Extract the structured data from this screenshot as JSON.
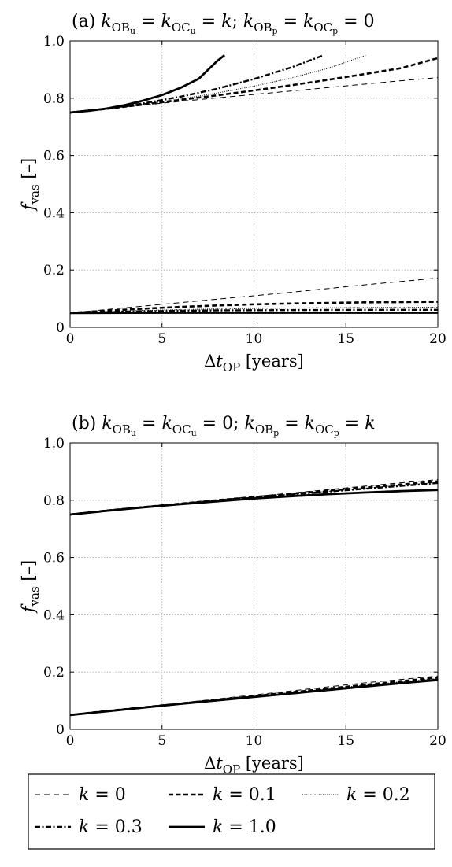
{
  "chart_data": [
    {
      "type": "line",
      "title": {
        "prefix": "(a)",
        "text": "k_OBu = k_OCu = k; k_OBp = k_OCp = 0",
        "tokens": [
          {
            "t": "(a) ",
            "it": false,
            "sub": false
          },
          {
            "t": "k",
            "it": true,
            "sub": false
          },
          {
            "t": "OB",
            "it": false,
            "sub": true
          },
          {
            "t": "u",
            "it": false,
            "sub": true,
            "subsub": true
          },
          {
            "t": " = ",
            "it": false,
            "sub": false
          },
          {
            "t": "k",
            "it": true,
            "sub": false
          },
          {
            "t": "OC",
            "it": false,
            "sub": true
          },
          {
            "t": "u",
            "it": false,
            "sub": true,
            "subsub": true
          },
          {
            "t": " = ",
            "it": false,
            "sub": false
          },
          {
            "t": "k",
            "it": true,
            "sub": false
          },
          {
            "t": "; ",
            "it": false,
            "sub": false
          },
          {
            "t": "k",
            "it": true,
            "sub": false
          },
          {
            "t": "OB",
            "it": false,
            "sub": true
          },
          {
            "t": "p",
            "it": false,
            "sub": true,
            "subsub": true
          },
          {
            "t": " = ",
            "it": false,
            "sub": false
          },
          {
            "t": "k",
            "it": true,
            "sub": false
          },
          {
            "t": "OC",
            "it": false,
            "sub": true
          },
          {
            "t": "p",
            "it": false,
            "sub": true,
            "subsub": true
          },
          {
            "t": " = 0",
            "it": false,
            "sub": false
          }
        ]
      },
      "xlabel": {
        "text": "Δt_OP [years]",
        "main": "Δt",
        "sub": "OP",
        "unit": " [years]"
      },
      "ylabel": {
        "text": "f_vas [–]",
        "main": "f",
        "sub": "vas",
        "unit": " [–]"
      },
      "xlim": [
        0,
        20
      ],
      "ylim": [
        0,
        1.0
      ],
      "xticks": [
        "0",
        "5",
        "10",
        "15",
        "20"
      ],
      "yticks": [
        "0",
        "0.2",
        "0.4",
        "0.6",
        "0.8",
        "1.0"
      ],
      "grid": true,
      "series": [
        {
          "name": "k = 0",
          "style": "dash-thin",
          "x": [
            0,
            2,
            4,
            6,
            8,
            10,
            12,
            14,
            16,
            18,
            20
          ],
          "y": [
            0.75,
            0.764,
            0.776,
            0.789,
            0.801,
            0.813,
            0.825,
            0.837,
            0.849,
            0.861,
            0.872
          ]
        },
        {
          "name": "k = 0.1",
          "style": "dash-thick",
          "x": [
            0,
            2,
            4,
            6,
            8,
            10,
            12,
            14,
            16,
            18,
            20
          ],
          "y": [
            0.75,
            0.763,
            0.778,
            0.794,
            0.81,
            0.827,
            0.845,
            0.864,
            0.884,
            0.905,
            0.94
          ]
        },
        {
          "name": "k = 0.2",
          "style": "dotted",
          "x": [
            0,
            2,
            4,
            6,
            8,
            10,
            12,
            14,
            16.1
          ],
          "y": [
            0.75,
            0.763,
            0.779,
            0.797,
            0.818,
            0.842,
            0.87,
            0.904,
            0.95
          ]
        },
        {
          "name": "k = 0.3",
          "style": "dashdot",
          "x": [
            0,
            2,
            4,
            6,
            8,
            10,
            12,
            13.8
          ],
          "y": [
            0.75,
            0.764,
            0.782,
            0.805,
            0.833,
            0.867,
            0.907,
            0.95
          ]
        },
        {
          "name": "k = 1.0",
          "style": "solid",
          "x": [
            0,
            1,
            2,
            3,
            4,
            5,
            6,
            7,
            8,
            8.4
          ],
          "y": [
            0.75,
            0.756,
            0.764,
            0.776,
            0.792,
            0.811,
            0.836,
            0.868,
            0.93,
            0.95
          ]
        },
        {
          "name": "k = 0",
          "style": "dash-thin",
          "x": [
            0,
            2,
            4,
            6,
            8,
            10,
            12,
            14,
            16,
            18,
            20
          ],
          "y": [
            0.05,
            0.062,
            0.074,
            0.086,
            0.098,
            0.11,
            0.122,
            0.135,
            0.148,
            0.16,
            0.172
          ]
        },
        {
          "name": "k = 0.1",
          "style": "dash-thick",
          "x": [
            0,
            2,
            4,
            6,
            8,
            10,
            12,
            14,
            16,
            18,
            20
          ],
          "y": [
            0.05,
            0.058,
            0.065,
            0.071,
            0.076,
            0.08,
            0.083,
            0.085,
            0.087,
            0.088,
            0.089
          ]
        },
        {
          "name": "k = 0.2",
          "style": "dotted",
          "x": [
            0,
            4,
            8,
            12,
            16,
            20
          ],
          "y": [
            0.05,
            0.059,
            0.064,
            0.067,
            0.069,
            0.07
          ]
        },
        {
          "name": "k = 0.3",
          "style": "dashdot",
          "x": [
            0,
            4,
            8,
            12,
            16,
            20
          ],
          "y": [
            0.05,
            0.056,
            0.059,
            0.06,
            0.061,
            0.061
          ]
        },
        {
          "name": "k = 1.0",
          "style": "solid",
          "x": [
            0,
            5,
            10,
            15,
            20
          ],
          "y": [
            0.05,
            0.051,
            0.051,
            0.051,
            0.051
          ]
        }
      ]
    },
    {
      "type": "line",
      "title": {
        "prefix": "(b)",
        "text": "k_OBu = k_OCu = 0; k_OBp = k_OCp = k",
        "tokens": [
          {
            "t": "(b) ",
            "it": false,
            "sub": false
          },
          {
            "t": "k",
            "it": true,
            "sub": false
          },
          {
            "t": "OB",
            "it": false,
            "sub": true
          },
          {
            "t": "u",
            "it": false,
            "sub": true,
            "subsub": true
          },
          {
            "t": " = ",
            "it": false,
            "sub": false
          },
          {
            "t": "k",
            "it": true,
            "sub": false
          },
          {
            "t": "OC",
            "it": false,
            "sub": true
          },
          {
            "t": "u",
            "it": false,
            "sub": true,
            "subsub": true
          },
          {
            "t": " = 0; ",
            "it": false,
            "sub": false
          },
          {
            "t": "k",
            "it": true,
            "sub": false
          },
          {
            "t": "OB",
            "it": false,
            "sub": true
          },
          {
            "t": "p",
            "it": false,
            "sub": true,
            "subsub": true
          },
          {
            "t": " = ",
            "it": false,
            "sub": false
          },
          {
            "t": "k",
            "it": true,
            "sub": false
          },
          {
            "t": "OC",
            "it": false,
            "sub": true
          },
          {
            "t": "p",
            "it": false,
            "sub": true,
            "subsub": true
          },
          {
            "t": " = ",
            "it": false,
            "sub": false
          },
          {
            "t": "k",
            "it": true,
            "sub": false
          }
        ]
      },
      "xlabel": {
        "text": "Δt_OP [years]",
        "main": "Δt",
        "sub": "OP",
        "unit": " [years]"
      },
      "ylabel": {
        "text": "f_vas [–]",
        "main": "f",
        "sub": "vas",
        "unit": " [–]"
      },
      "xlim": [
        0,
        20
      ],
      "ylim": [
        0,
        1.0
      ],
      "xticks": [
        "0",
        "5",
        "10",
        "15",
        "20"
      ],
      "yticks": [
        "0",
        "0.2",
        "0.4",
        "0.6",
        "0.8",
        "1.0"
      ],
      "grid": true,
      "series": [
        {
          "name": "k = 0",
          "style": "dash-thin",
          "x": [
            0,
            2,
            4,
            6,
            8,
            10,
            12,
            14,
            16,
            18,
            20
          ],
          "y": [
            0.75,
            0.764,
            0.776,
            0.789,
            0.801,
            0.813,
            0.825,
            0.837,
            0.849,
            0.861,
            0.872
          ]
        },
        {
          "name": "k = 0.1",
          "style": "dash-thick",
          "x": [
            0,
            2,
            4,
            6,
            8,
            10,
            12,
            14,
            16,
            18,
            20
          ],
          "y": [
            0.75,
            0.764,
            0.776,
            0.788,
            0.8,
            0.811,
            0.822,
            0.833,
            0.844,
            0.855,
            0.866
          ]
        },
        {
          "name": "k = 0.2",
          "style": "dotted",
          "x": [
            0,
            2,
            4,
            6,
            8,
            10,
            12,
            14,
            16,
            18,
            20
          ],
          "y": [
            0.75,
            0.764,
            0.776,
            0.788,
            0.799,
            0.81,
            0.821,
            0.831,
            0.842,
            0.852,
            0.862
          ]
        },
        {
          "name": "k = 0.3",
          "style": "dashdot",
          "x": [
            0,
            2,
            4,
            6,
            8,
            10,
            12,
            14,
            16,
            18,
            20
          ],
          "y": [
            0.75,
            0.764,
            0.776,
            0.787,
            0.798,
            0.809,
            0.82,
            0.83,
            0.84,
            0.85,
            0.86
          ]
        },
        {
          "name": "k = 1.0",
          "style": "solid",
          "x": [
            0,
            2,
            4,
            6,
            8,
            10,
            12,
            14,
            16,
            18,
            20
          ],
          "y": [
            0.75,
            0.763,
            0.775,
            0.786,
            0.796,
            0.806,
            0.814,
            0.821,
            0.827,
            0.832,
            0.836
          ]
        },
        {
          "name": "k = 0",
          "style": "dash-thin",
          "x": [
            0,
            2,
            4,
            6,
            8,
            10,
            12,
            14,
            16,
            18,
            20
          ],
          "y": [
            0.05,
            0.064,
            0.078,
            0.092,
            0.106,
            0.12,
            0.134,
            0.148,
            0.162,
            0.174,
            0.186
          ]
        },
        {
          "name": "k = 0.1",
          "style": "dash-thick",
          "x": [
            0,
            2,
            4,
            6,
            8,
            10,
            12,
            14,
            16,
            18,
            20
          ],
          "y": [
            0.05,
            0.064,
            0.077,
            0.09,
            0.103,
            0.116,
            0.129,
            0.142,
            0.155,
            0.168,
            0.181
          ]
        },
        {
          "name": "k = 0.2",
          "style": "dotted",
          "x": [
            0,
            2,
            4,
            6,
            8,
            10,
            12,
            14,
            16,
            18,
            20
          ],
          "y": [
            0.05,
            0.063,
            0.076,
            0.089,
            0.102,
            0.115,
            0.128,
            0.141,
            0.154,
            0.166,
            0.178
          ]
        },
        {
          "name": "k = 0.3",
          "style": "dashdot",
          "x": [
            0,
            2,
            4,
            6,
            8,
            10,
            12,
            14,
            16,
            18,
            20
          ],
          "y": [
            0.05,
            0.063,
            0.076,
            0.089,
            0.101,
            0.114,
            0.126,
            0.138,
            0.15,
            0.162,
            0.174
          ]
        },
        {
          "name": "k = 1.0",
          "style": "solid",
          "x": [
            0,
            2,
            4,
            6,
            8,
            10,
            12,
            14,
            16,
            18,
            20
          ],
          "y": [
            0.05,
            0.063,
            0.076,
            0.089,
            0.101,
            0.113,
            0.125,
            0.137,
            0.149,
            0.161,
            0.172
          ]
        }
      ]
    }
  ],
  "legend": {
    "placement": "bottom",
    "entries": [
      {
        "label": "k = 0",
        "var": "k",
        "rest": " = 0",
        "style": "dash-thin"
      },
      {
        "label": "k = 0.1",
        "var": "k",
        "rest": " = 0.1",
        "style": "dash-thick"
      },
      {
        "label": "k = 0.2",
        "var": "k",
        "rest": " = 0.2",
        "style": "dotted"
      },
      {
        "label": "k = 0.3",
        "var": "k",
        "rest": " = 0.3",
        "style": "dashdot"
      },
      {
        "label": "k = 1.0",
        "var": "k",
        "rest": " = 1.0",
        "style": "solid"
      }
    ]
  },
  "colors": {
    "line": "#000000",
    "grid": "#9a9a9a",
    "background": "#ffffff"
  }
}
